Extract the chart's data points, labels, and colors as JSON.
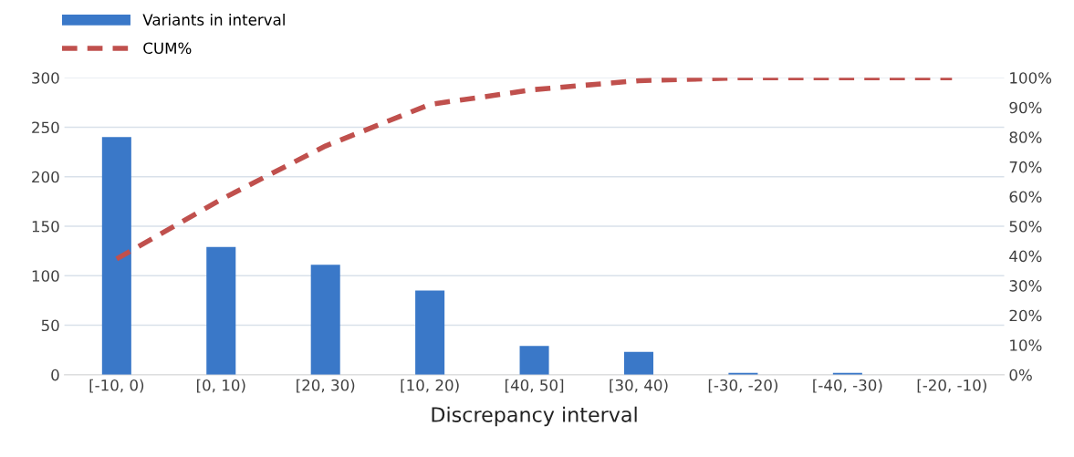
{
  "chart_data": {
    "type": "bar",
    "xlabel": "Discrepancy interval",
    "categories": [
      "[-10, 0)",
      "[0, 10)",
      "[20, 30)",
      "[10, 20)",
      "[40, 50]",
      "[30, 40)",
      "[-30, -20)",
      "[-40, -30)",
      "[-20, -10)"
    ],
    "series": [
      {
        "name": "Variants in interval",
        "color": "#3a78c8",
        "values": [
          240,
          129,
          111,
          85,
          29,
          23,
          2,
          2,
          0
        ]
      },
      {
        "name": "CUM%",
        "type": "line",
        "axis": "y2",
        "color": "#c0504d",
        "line_style": "dashed",
        "values": [
          39,
          59,
          77,
          91,
          96,
          99,
          100,
          100,
          100
        ]
      }
    ],
    "ylim": [
      0,
      300
    ],
    "yticks": [
      0,
      50,
      100,
      150,
      200,
      250,
      300
    ],
    "y2lim": [
      0,
      100
    ],
    "y2ticks": [
      {
        "value": 0,
        "label": "0%"
      },
      {
        "value": 10,
        "label": "10%"
      },
      {
        "value": 20,
        "label": "20%"
      },
      {
        "value": 30,
        "label": "30%"
      },
      {
        "value": 40,
        "label": "40%"
      },
      {
        "value": 50,
        "label": "50%"
      },
      {
        "value": 60,
        "label": "60%"
      },
      {
        "value": 70,
        "label": "70%"
      },
      {
        "value": 80,
        "label": "80%"
      },
      {
        "value": 90,
        "label": "90%"
      },
      {
        "value": 100,
        "label": "100%"
      }
    ],
    "grid": "y",
    "legend": "top left"
  }
}
